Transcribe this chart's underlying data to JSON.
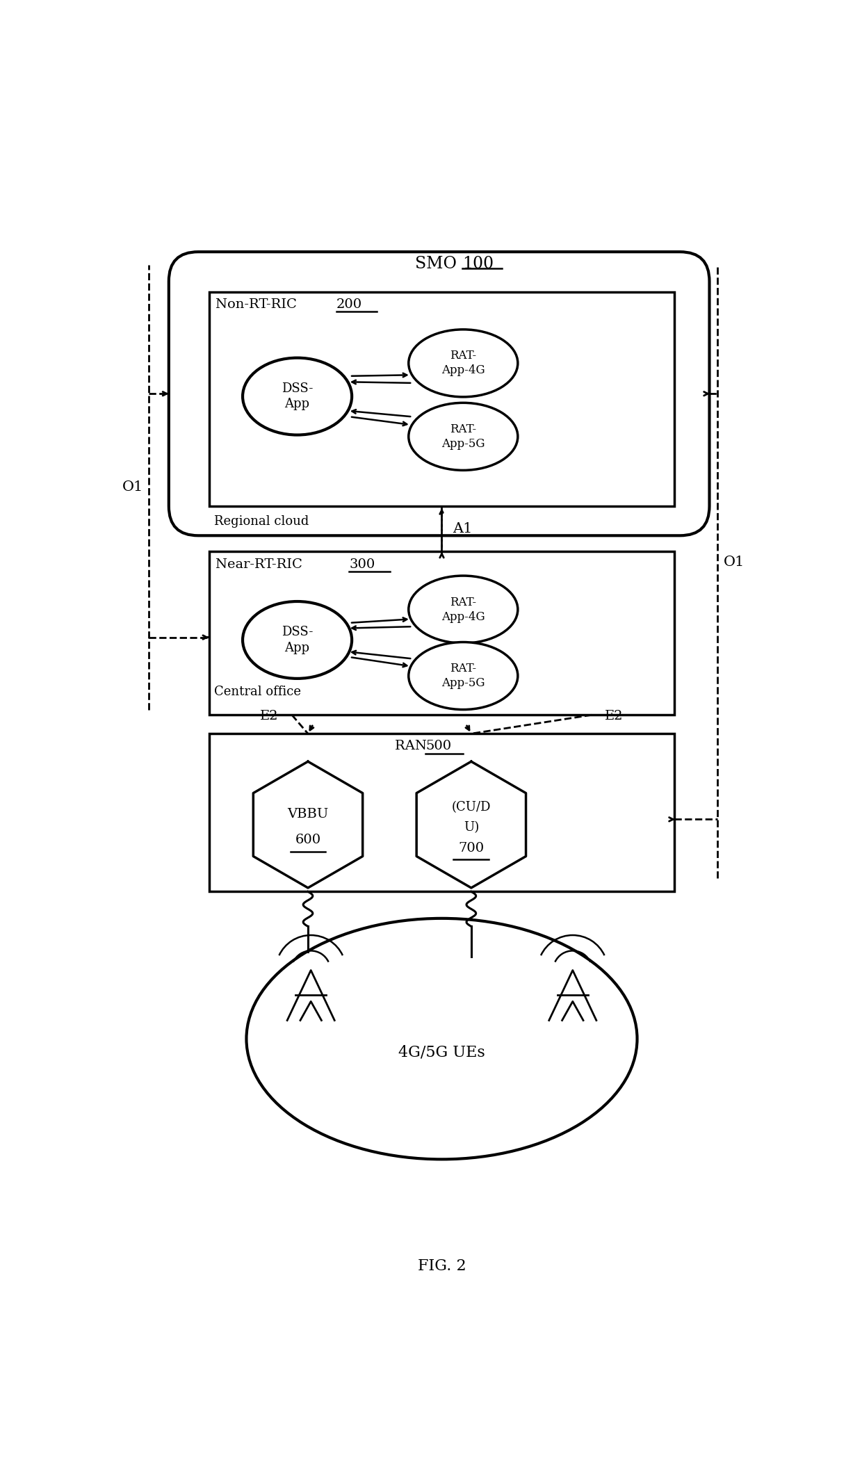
{
  "title": "FIG. 2",
  "bg_color": "#ffffff",
  "smo_label": "SMO ",
  "smo_num": "100",
  "nonrt_label": "Non-RT-RIC ",
  "nonrt_num": "200",
  "nearrt_label": "Near-RT-RIC ",
  "nearrt_num": "300",
  "ran_label": "RAN ",
  "ran_num": "500",
  "regional_cloud": "Regional cloud",
  "central_office": "Central office",
  "dss_app": "DSS-\nApp",
  "rat_4g": "RAT-\nApp-4G",
  "rat_5g": "RAT-\nApp-5G",
  "vbbu_label": "VBBU",
  "vbbu_num": "600",
  "cudu_label1": "(CU/D",
  "cudu_label2": "U)",
  "cudu_num": "700",
  "ues_label": "4G/5G UEs",
  "a1_label": "A1",
  "e2_label": "E2",
  "o1_label": "O1",
  "fig_label": "FIG. 2"
}
